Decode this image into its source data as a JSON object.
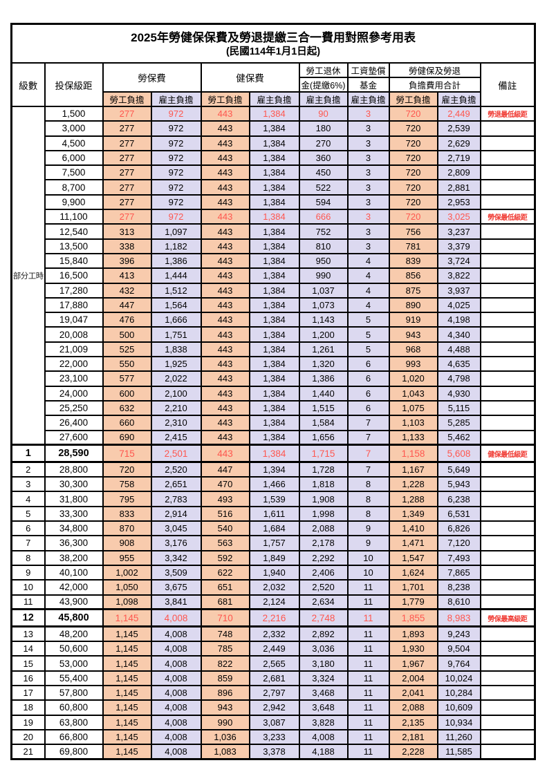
{
  "title": "2025年勞健保保費及勞退提繳三合一費用對照參考用表",
  "subtitle": "(民國114年1月1日起)",
  "header": {
    "level": "級數",
    "bracket": "投保級距",
    "labor_insurance": "勞保費",
    "health_insurance": "健保費",
    "pension_line1": "勞工退休",
    "pension_line2": "金(提繳6%)",
    "wage_fund_line1": "工資墊償",
    "wage_fund_line2": "基金",
    "total_line1": "勞健保及勞退",
    "total_line2": "負擔費用合計",
    "remark": "備註",
    "employee": "勞工負擔",
    "employer": "雇主負擔"
  },
  "part_time_label": "部分工時",
  "colors": {
    "employee_bg": "#f8cbad",
    "employer_bg": "#dcd9f0",
    "highlight_number_red": "#ff564e",
    "remark_red": "#f03b33",
    "border": "#000000",
    "background": "#ffffff"
  },
  "remarks_legend": [
    "勞退最低級距",
    "勞保最低級距",
    "健保最低級距",
    "勞保最高級距"
  ],
  "rows": [
    [
      "",
      "1,500",
      "277",
      "972",
      "443",
      "1,384",
      "90",
      "3",
      "720",
      "2,449",
      "勞退最低級距",
      "red"
    ],
    [
      "",
      "3,000",
      "277",
      "972",
      "443",
      "1,384",
      "180",
      "3",
      "720",
      "2,539",
      "",
      ""
    ],
    [
      "",
      "4,500",
      "277",
      "972",
      "443",
      "1,384",
      "270",
      "3",
      "720",
      "2,629",
      "",
      ""
    ],
    [
      "",
      "6,000",
      "277",
      "972",
      "443",
      "1,384",
      "360",
      "3",
      "720",
      "2,719",
      "",
      ""
    ],
    [
      "",
      "7,500",
      "277",
      "972",
      "443",
      "1,384",
      "450",
      "3",
      "720",
      "2,809",
      "",
      ""
    ],
    [
      "",
      "8,700",
      "277",
      "972",
      "443",
      "1,384",
      "522",
      "3",
      "720",
      "2,881",
      "",
      ""
    ],
    [
      "",
      "9,900",
      "277",
      "972",
      "443",
      "1,384",
      "594",
      "3",
      "720",
      "2,953",
      "",
      ""
    ],
    [
      "",
      "11,100",
      "277",
      "972",
      "443",
      "1,384",
      "666",
      "3",
      "720",
      "3,025",
      "勞保最低級距",
      "red"
    ],
    [
      "",
      "12,540",
      "313",
      "1,097",
      "443",
      "1,384",
      "752",
      "3",
      "756",
      "3,237",
      "",
      ""
    ],
    [
      "",
      "13,500",
      "338",
      "1,182",
      "443",
      "1,384",
      "810",
      "3",
      "781",
      "3,379",
      "",
      ""
    ],
    [
      "",
      "15,840",
      "396",
      "1,386",
      "443",
      "1,384",
      "950",
      "4",
      "839",
      "3,724",
      "",
      ""
    ],
    [
      "",
      "16,500",
      "413",
      "1,444",
      "443",
      "1,384",
      "990",
      "4",
      "856",
      "3,822",
      "",
      ""
    ],
    [
      "",
      "17,280",
      "432",
      "1,512",
      "443",
      "1,384",
      "1,037",
      "4",
      "875",
      "3,937",
      "",
      ""
    ],
    [
      "",
      "17,880",
      "447",
      "1,564",
      "443",
      "1,384",
      "1,073",
      "4",
      "890",
      "4,025",
      "",
      ""
    ],
    [
      "",
      "19,047",
      "476",
      "1,666",
      "443",
      "1,384",
      "1,143",
      "5",
      "919",
      "4,198",
      "",
      ""
    ],
    [
      "",
      "20,008",
      "500",
      "1,751",
      "443",
      "1,384",
      "1,200",
      "5",
      "943",
      "4,340",
      "",
      ""
    ],
    [
      "",
      "21,009",
      "525",
      "1,838",
      "443",
      "1,384",
      "1,261",
      "5",
      "968",
      "4,488",
      "",
      ""
    ],
    [
      "",
      "22,000",
      "550",
      "1,925",
      "443",
      "1,384",
      "1,320",
      "6",
      "993",
      "4,635",
      "",
      ""
    ],
    [
      "",
      "23,100",
      "577",
      "2,022",
      "443",
      "1,384",
      "1,386",
      "6",
      "1,020",
      "4,798",
      "",
      ""
    ],
    [
      "",
      "24,000",
      "600",
      "2,100",
      "443",
      "1,384",
      "1,440",
      "6",
      "1,043",
      "4,930",
      "",
      ""
    ],
    [
      "",
      "25,250",
      "632",
      "2,210",
      "443",
      "1,384",
      "1,515",
      "6",
      "1,075",
      "5,115",
      "",
      ""
    ],
    [
      "",
      "26,400",
      "660",
      "2,310",
      "443",
      "1,384",
      "1,584",
      "7",
      "1,103",
      "5,285",
      "",
      ""
    ],
    [
      "",
      "27,600",
      "690",
      "2,415",
      "443",
      "1,384",
      "1,656",
      "7",
      "1,133",
      "5,462",
      "",
      ""
    ],
    [
      "1",
      "28,590",
      "715",
      "2,501",
      "443",
      "1,384",
      "1,715",
      "7",
      "1,158",
      "5,608",
      "健保最低級距",
      "red hl"
    ],
    [
      "2",
      "28,800",
      "720",
      "2,520",
      "447",
      "1,394",
      "1,728",
      "7",
      "1,167",
      "5,649",
      "",
      ""
    ],
    [
      "3",
      "30,300",
      "758",
      "2,651",
      "470",
      "1,466",
      "1,818",
      "8",
      "1,228",
      "5,943",
      "",
      ""
    ],
    [
      "4",
      "31,800",
      "795",
      "2,783",
      "493",
      "1,539",
      "1,908",
      "8",
      "1,288",
      "6,238",
      "",
      ""
    ],
    [
      "5",
      "33,300",
      "833",
      "2,914",
      "516",
      "1,611",
      "1,998",
      "8",
      "1,349",
      "6,531",
      "",
      ""
    ],
    [
      "6",
      "34,800",
      "870",
      "3,045",
      "540",
      "1,684",
      "2,088",
      "9",
      "1,410",
      "6,826",
      "",
      ""
    ],
    [
      "7",
      "36,300",
      "908",
      "3,176",
      "563",
      "1,757",
      "2,178",
      "9",
      "1,471",
      "7,120",
      "",
      ""
    ],
    [
      "8",
      "38,200",
      "955",
      "3,342",
      "592",
      "1,849",
      "2,292",
      "10",
      "1,547",
      "7,493",
      "",
      ""
    ],
    [
      "9",
      "40,100",
      "1,002",
      "3,509",
      "622",
      "1,940",
      "2,406",
      "10",
      "1,624",
      "7,865",
      "",
      ""
    ],
    [
      "10",
      "42,000",
      "1,050",
      "3,675",
      "651",
      "2,032",
      "2,520",
      "11",
      "1,701",
      "8,238",
      "",
      ""
    ],
    [
      "11",
      "43,900",
      "1,098",
      "3,841",
      "681",
      "2,124",
      "2,634",
      "11",
      "1,779",
      "8,610",
      "",
      ""
    ],
    [
      "12",
      "45,800",
      "1,145",
      "4,008",
      "710",
      "2,216",
      "2,748",
      "11",
      "1,855",
      "8,983",
      "勞保最高級距",
      "red hl"
    ],
    [
      "13",
      "48,200",
      "1,145",
      "4,008",
      "748",
      "2,332",
      "2,892",
      "11",
      "1,893",
      "9,243",
      "",
      ""
    ],
    [
      "14",
      "50,600",
      "1,145",
      "4,008",
      "785",
      "2,449",
      "3,036",
      "11",
      "1,930",
      "9,504",
      "",
      ""
    ],
    [
      "15",
      "53,000",
      "1,145",
      "4,008",
      "822",
      "2,565",
      "3,180",
      "11",
      "1,967",
      "9,764",
      "",
      ""
    ],
    [
      "16",
      "55,400",
      "1,145",
      "4,008",
      "859",
      "2,681",
      "3,324",
      "11",
      "2,004",
      "10,024",
      "",
      ""
    ],
    [
      "17",
      "57,800",
      "1,145",
      "4,008",
      "896",
      "2,797",
      "3,468",
      "11",
      "2,041",
      "10,284",
      "",
      ""
    ],
    [
      "18",
      "60,800",
      "1,145",
      "4,008",
      "943",
      "2,942",
      "3,648",
      "11",
      "2,088",
      "10,609",
      "",
      ""
    ],
    [
      "19",
      "63,800",
      "1,145",
      "4,008",
      "990",
      "3,087",
      "3,828",
      "11",
      "2,135",
      "10,934",
      "",
      ""
    ],
    [
      "20",
      "66,800",
      "1,145",
      "4,008",
      "1,036",
      "3,233",
      "4,008",
      "11",
      "2,181",
      "11,260",
      "",
      ""
    ],
    [
      "21",
      "69,800",
      "1,145",
      "4,008",
      "1,083",
      "3,378",
      "4,188",
      "11",
      "2,228",
      "11,585",
      "",
      ""
    ]
  ]
}
